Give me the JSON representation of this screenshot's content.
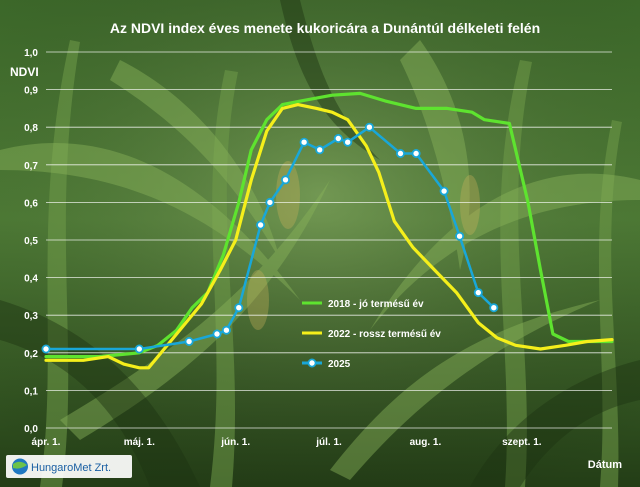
{
  "chart_data": {
    "type": "line",
    "title": "Az NDVI index éves menete kukoricára a Dunántúl délkeleti felén",
    "ylabel": "NDVI",
    "xlabel": "Dátum",
    "ylim": [
      0,
      1
    ],
    "yticks": [
      "0,0",
      "0,1",
      "0,2",
      "0,3",
      "0,4",
      "0,5",
      "0,6",
      "0,7",
      "0,8",
      "0,9",
      "1,0"
    ],
    "xlim": [
      91,
      273
    ],
    "xticks": [
      {
        "label": "ápr. 1.",
        "day": 91
      },
      {
        "label": "máj. 1.",
        "day": 121
      },
      {
        "label": "jún. 1.",
        "day": 152
      },
      {
        "label": "júl. 1.",
        "day": 182
      },
      {
        "label": "aug. 1.",
        "day": 213
      },
      {
        "label": "szept. 1.",
        "day": 244
      }
    ],
    "grid": true,
    "legend_position": "bottom-right",
    "series": [
      {
        "name": "2018 - jó termésű év",
        "color": "#5ee32f",
        "markers": false,
        "points": [
          [
            91,
            0.19
          ],
          [
            108,
            0.19
          ],
          [
            121,
            0.2
          ],
          [
            127,
            0.22
          ],
          [
            133,
            0.26
          ],
          [
            138,
            0.32
          ],
          [
            143,
            0.36
          ],
          [
            148,
            0.46
          ],
          [
            153,
            0.6
          ],
          [
            157,
            0.74
          ],
          [
            162,
            0.82
          ],
          [
            167,
            0.86
          ],
          [
            173,
            0.87
          ],
          [
            183,
            0.885
          ],
          [
            192,
            0.89
          ],
          [
            200,
            0.87
          ],
          [
            210,
            0.85
          ],
          [
            220,
            0.85
          ],
          [
            228,
            0.84
          ],
          [
            232,
            0.82
          ],
          [
            240,
            0.81
          ],
          [
            246,
            0.6
          ],
          [
            250,
            0.42
          ],
          [
            254,
            0.25
          ],
          [
            259,
            0.23
          ],
          [
            273,
            0.23
          ]
        ]
      },
      {
        "name": "2022 - rossz termésű év",
        "color": "#f5ef1b",
        "markers": false,
        "points": [
          [
            91,
            0.18
          ],
          [
            103,
            0.18
          ],
          [
            111,
            0.19
          ],
          [
            116,
            0.17
          ],
          [
            121,
            0.16
          ],
          [
            124,
            0.16
          ],
          [
            129,
            0.21
          ],
          [
            135,
            0.27
          ],
          [
            141,
            0.33
          ],
          [
            147,
            0.42
          ],
          [
            152,
            0.5
          ],
          [
            157,
            0.66
          ],
          [
            162,
            0.79
          ],
          [
            167,
            0.85
          ],
          [
            172,
            0.86
          ],
          [
            178,
            0.85
          ],
          [
            183,
            0.84
          ],
          [
            188,
            0.82
          ],
          [
            194,
            0.75
          ],
          [
            198,
            0.68
          ],
          [
            203,
            0.55
          ],
          [
            209,
            0.48
          ],
          [
            216,
            0.42
          ],
          [
            223,
            0.36
          ],
          [
            230,
            0.28
          ],
          [
            236,
            0.24
          ],
          [
            242,
            0.22
          ],
          [
            250,
            0.21
          ],
          [
            258,
            0.22
          ],
          [
            265,
            0.23
          ],
          [
            273,
            0.235
          ]
        ]
      },
      {
        "name": "2025",
        "color": "#19a7d8",
        "markers": true,
        "points": [
          [
            91,
            0.21
          ],
          [
            121,
            0.21
          ],
          [
            137,
            0.23
          ],
          [
            146,
            0.25
          ],
          [
            149,
            0.26
          ],
          [
            153,
            0.32
          ],
          [
            160,
            0.54
          ],
          [
            163,
            0.6
          ],
          [
            168,
            0.66
          ],
          [
            174,
            0.76
          ],
          [
            179,
            0.74
          ],
          [
            185,
            0.77
          ],
          [
            188,
            0.76
          ],
          [
            195,
            0.8
          ],
          [
            205,
            0.73
          ],
          [
            210,
            0.73
          ],
          [
            219,
            0.63
          ],
          [
            224,
            0.51
          ],
          [
            230,
            0.36
          ],
          [
            235,
            0.32
          ]
        ]
      }
    ]
  },
  "logo": {
    "text": "HungaroMet Zrt."
  }
}
